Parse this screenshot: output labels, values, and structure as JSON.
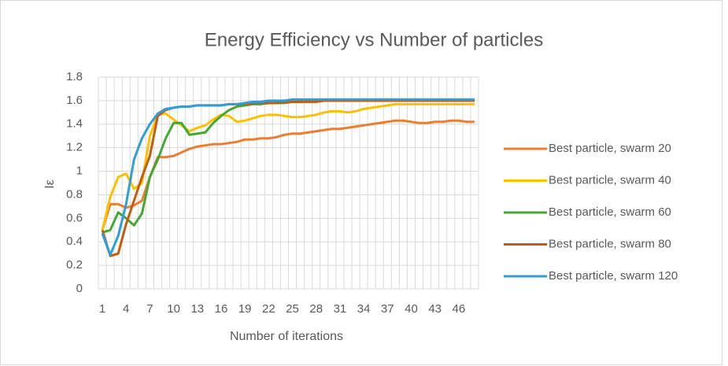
{
  "chart_data": {
    "type": "line",
    "title": "Energy Efficiency vs Number of particles",
    "x_label": "Number of iterations",
    "y_label": "Iε",
    "categories": [
      1,
      null,
      null,
      4,
      null,
      null,
      7,
      null,
      null,
      10,
      null,
      null,
      13,
      null,
      null,
      16,
      null,
      null,
      19,
      null,
      null,
      22,
      null,
      null,
      25,
      null,
      null,
      28,
      null,
      null,
      31,
      null,
      null,
      34,
      null,
      null,
      37,
      null,
      null,
      40,
      null,
      null,
      43,
      null,
      null,
      46,
      null,
      null
    ],
    "ylim": [
      0,
      1.8
    ],
    "yticks": [
      0,
      0.2,
      0.4,
      0.6,
      0.8,
      1,
      1.2,
      1.4,
      1.6,
      1.8
    ],
    "grid": true,
    "legend": "right",
    "series": [
      {
        "name": "Best particle, swarm 20",
        "color": "#ed7d31",
        "values": [
          0.5,
          0.72,
          0.72,
          0.69,
          0.71,
          0.75,
          0.95,
          1.12,
          1.12,
          1.13,
          1.16,
          1.19,
          1.21,
          1.22,
          1.23,
          1.23,
          1.24,
          1.25,
          1.27,
          1.27,
          1.28,
          1.28,
          1.29,
          1.31,
          1.32,
          1.32,
          1.33,
          1.34,
          1.35,
          1.36,
          1.36,
          1.37,
          1.38,
          1.39,
          1.4,
          1.41,
          1.42,
          1.43,
          1.43,
          1.42,
          1.41,
          1.41,
          1.42,
          1.42,
          1.43,
          1.43,
          1.42,
          1.42
        ]
      },
      {
        "name": "Best particle, swarm 40",
        "color": "#ffc000",
        "values": [
          0.5,
          0.78,
          0.95,
          0.98,
          0.85,
          0.9,
          1.3,
          1.48,
          1.49,
          1.44,
          1.39,
          1.34,
          1.37,
          1.39,
          1.44,
          1.48,
          1.47,
          1.42,
          1.43,
          1.45,
          1.47,
          1.48,
          1.48,
          1.47,
          1.46,
          1.46,
          1.47,
          1.48,
          1.5,
          1.51,
          1.51,
          1.5,
          1.51,
          1.53,
          1.54,
          1.55,
          1.56,
          1.57,
          1.57,
          1.57,
          1.57,
          1.57,
          1.57,
          1.57,
          1.57,
          1.57,
          1.57,
          1.57
        ]
      },
      {
        "name": "Best particle, swarm 60",
        "color": "#44a833",
        "values": [
          0.48,
          0.5,
          0.65,
          0.6,
          0.54,
          0.64,
          0.95,
          1.1,
          1.28,
          1.41,
          1.41,
          1.31,
          1.32,
          1.33,
          1.41,
          1.47,
          1.52,
          1.55,
          1.56,
          1.57,
          1.57,
          1.58,
          1.58,
          1.58,
          1.59,
          1.59,
          1.6,
          1.6,
          1.6,
          1.6,
          1.6,
          1.6,
          1.6,
          1.6,
          1.6,
          1.6,
          1.6,
          1.6,
          1.6,
          1.6,
          1.6,
          1.6,
          1.6,
          1.6,
          1.6,
          1.6,
          1.6,
          1.6
        ]
      },
      {
        "name": "Best particle, swarm 80",
        "color": "#c55a11",
        "values": [
          0.5,
          0.28,
          0.3,
          0.55,
          0.75,
          0.95,
          1.13,
          1.47,
          1.52,
          1.54,
          1.55,
          1.55,
          1.56,
          1.56,
          1.56,
          1.56,
          1.57,
          1.57,
          1.57,
          1.58,
          1.58,
          1.58,
          1.58,
          1.59,
          1.59,
          1.59,
          1.59,
          1.59,
          1.6,
          1.6,
          1.6,
          1.6,
          1.6,
          1.6,
          1.6,
          1.6,
          1.6,
          1.6,
          1.6,
          1.6,
          1.6,
          1.6,
          1.6,
          1.6,
          1.6,
          1.6,
          1.6,
          1.6
        ]
      },
      {
        "name": "Best particle, swarm 120",
        "color": "#2e9fd8",
        "values": [
          0.47,
          0.29,
          0.45,
          0.72,
          1.1,
          1.28,
          1.4,
          1.49,
          1.53,
          1.54,
          1.55,
          1.55,
          1.56,
          1.56,
          1.56,
          1.56,
          1.57,
          1.57,
          1.58,
          1.59,
          1.59,
          1.6,
          1.6,
          1.6,
          1.61,
          1.61,
          1.61,
          1.61,
          1.61,
          1.61,
          1.61,
          1.61,
          1.61,
          1.61,
          1.61,
          1.61,
          1.61,
          1.61,
          1.61,
          1.61,
          1.61,
          1.61,
          1.61,
          1.61,
          1.61,
          1.61,
          1.61,
          1.61
        ]
      }
    ]
  }
}
